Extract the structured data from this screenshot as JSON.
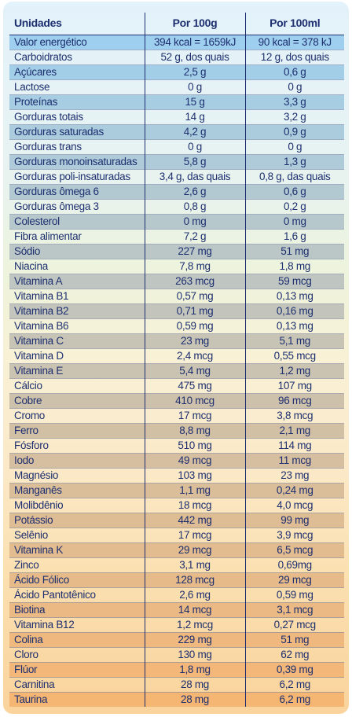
{
  "header": {
    "col1": "Unidades",
    "col2": "Por 100g",
    "col3": "Por 100ml"
  },
  "colors": {
    "text": "#1d2f6f",
    "row_shade_top": "#9fcfee",
    "row_shade_bottom": "#f6b673"
  },
  "rows": [
    {
      "name": "Valor energético",
      "per100g": "394 kcal = 1659kJ",
      "per100ml": "90 kcal = 378 kJ",
      "shaded": true
    },
    {
      "name": "Carboidratos",
      "per100g": "52 g, dos quais",
      "per100ml": "12 g, dos quais",
      "shaded": false
    },
    {
      "name": "Açúcares",
      "per100g": "2,5 g",
      "per100ml": "0,6 g",
      "shaded": true
    },
    {
      "name": "Lactose",
      "per100g": "0 g",
      "per100ml": "0 g",
      "shaded": false
    },
    {
      "name": "Proteínas",
      "per100g": "15 g",
      "per100ml": "3,3 g",
      "shaded": true
    },
    {
      "name": "Gorduras totais",
      "per100g": "14 g",
      "per100ml": "3,2 g",
      "shaded": false
    },
    {
      "name": "Gorduras saturadas",
      "per100g": "4,2 g",
      "per100ml": "0,9 g",
      "shaded": true
    },
    {
      "name": "Gorduras trans",
      "per100g": "0 g",
      "per100ml": "0 g",
      "shaded": false
    },
    {
      "name": "Gorduras monoinsaturadas",
      "per100g": "5,8 g",
      "per100ml": "1,3 g",
      "shaded": true
    },
    {
      "name": "Gorduras poli-insaturadas",
      "per100g": "3,4 g, das quais",
      "per100ml": "0,8 g, das quais",
      "shaded": false
    },
    {
      "name": "Gorduras ômega 6",
      "per100g": "2,6 g",
      "per100ml": "0,6 g",
      "shaded": true
    },
    {
      "name": "Gorduras ômega 3",
      "per100g": "0,8 g",
      "per100ml": "0,2 g",
      "shaded": false
    },
    {
      "name": "Colesterol",
      "per100g": "0 mg",
      "per100ml": "0 mg",
      "shaded": true
    },
    {
      "name": "Fibra alimentar",
      "per100g": "7,2 g",
      "per100ml": "1,6 g",
      "shaded": false
    },
    {
      "name": "Sódio",
      "per100g": "227 mg",
      "per100ml": "51 mg",
      "shaded": true
    },
    {
      "name": "Niacina",
      "per100g": "7,8 mg",
      "per100ml": "1,8 mg",
      "shaded": false
    },
    {
      "name": "Vitamina A",
      "per100g": "263 mcg",
      "per100ml": "59 mcg",
      "shaded": true
    },
    {
      "name": "Vitamina B1",
      "per100g": "0,57 mg",
      "per100ml": "0,13 mg",
      "shaded": false
    },
    {
      "name": "Vitamina B2",
      "per100g": "0,71 mg",
      "per100ml": "0,16 mg",
      "shaded": true
    },
    {
      "name": "Vitamina B6",
      "per100g": "0,59 mg",
      "per100ml": "0,13 mg",
      "shaded": false
    },
    {
      "name": "Vitamina C",
      "per100g": "23 mg",
      "per100ml": "5,1 mg",
      "shaded": true
    },
    {
      "name": "Vitamina D",
      "per100g": "2,4 mcg",
      "per100ml": "0,55 mcg",
      "shaded": false
    },
    {
      "name": "Vitamina E",
      "per100g": "5,4 mg",
      "per100ml": "1,2 mg",
      "shaded": true
    },
    {
      "name": "Cálcio",
      "per100g": "475 mg",
      "per100ml": "107 mg",
      "shaded": false
    },
    {
      "name": "Cobre",
      "per100g": "410 mcg",
      "per100ml": "96 mcg",
      "shaded": true
    },
    {
      "name": "Cromo",
      "per100g": "17 mcg",
      "per100ml": "3,8 mcg",
      "shaded": false
    },
    {
      "name": "Ferro",
      "per100g": "8,8 mg",
      "per100ml": "2,1 mg",
      "shaded": true
    },
    {
      "name": "Fósforo",
      "per100g": "510 mg",
      "per100ml": "114 mg",
      "shaded": false
    },
    {
      "name": "Iodo",
      "per100g": "49 mcg",
      "per100ml": "11 mcg",
      "shaded": true
    },
    {
      "name": "Magnésio",
      "per100g": "103 mg",
      "per100ml": "23 mg",
      "shaded": false
    },
    {
      "name": "Manganês",
      "per100g": "1,1 mg",
      "per100ml": "0,24 mg",
      "shaded": true
    },
    {
      "name": "Molibdênio",
      "per100g": "18 mcg",
      "per100ml": "4,0 mcg",
      "shaded": false
    },
    {
      "name": "Potássio",
      "per100g": "442 mg",
      "per100ml": "99 mg",
      "shaded": true
    },
    {
      "name": "Selênio",
      "per100g": "17 mcg",
      "per100ml": "3,9 mcg",
      "shaded": false
    },
    {
      "name": "Vitamina K",
      "per100g": "29 mcg",
      "per100ml": "6,5 mcg",
      "shaded": true
    },
    {
      "name": "Zinco",
      "per100g": "3,1 mg",
      "per100ml": "0,69mg",
      "shaded": false
    },
    {
      "name": "Ácido Fólico",
      "per100g": "128 mcg",
      "per100ml": "29 mcg",
      "shaded": true
    },
    {
      "name": "Ácido Pantotênico",
      "per100g": "2,6 mg",
      "per100ml": "0,59 mg",
      "shaded": false
    },
    {
      "name": "Biotina",
      "per100g": "14 mcg",
      "per100ml": "3,1 mcg",
      "shaded": true
    },
    {
      "name": "Vitamina B12",
      "per100g": "1,2 mcg",
      "per100ml": "0,27 mcg",
      "shaded": false
    },
    {
      "name": "Colina",
      "per100g": "229 mg",
      "per100ml": "51 mg",
      "shaded": true
    },
    {
      "name": "Cloro",
      "per100g": "130 mg",
      "per100ml": "62 mg",
      "shaded": false
    },
    {
      "name": "Flúor",
      "per100g": "1,8 mg",
      "per100ml": "0,39 mg",
      "shaded": true
    },
    {
      "name": "Carnitina",
      "per100g": "28 mg",
      "per100ml": "6,2 mg",
      "shaded": false
    },
    {
      "name": "Taurina",
      "per100g": "28 mg",
      "per100ml": "6,2 mg",
      "shaded": true
    }
  ]
}
